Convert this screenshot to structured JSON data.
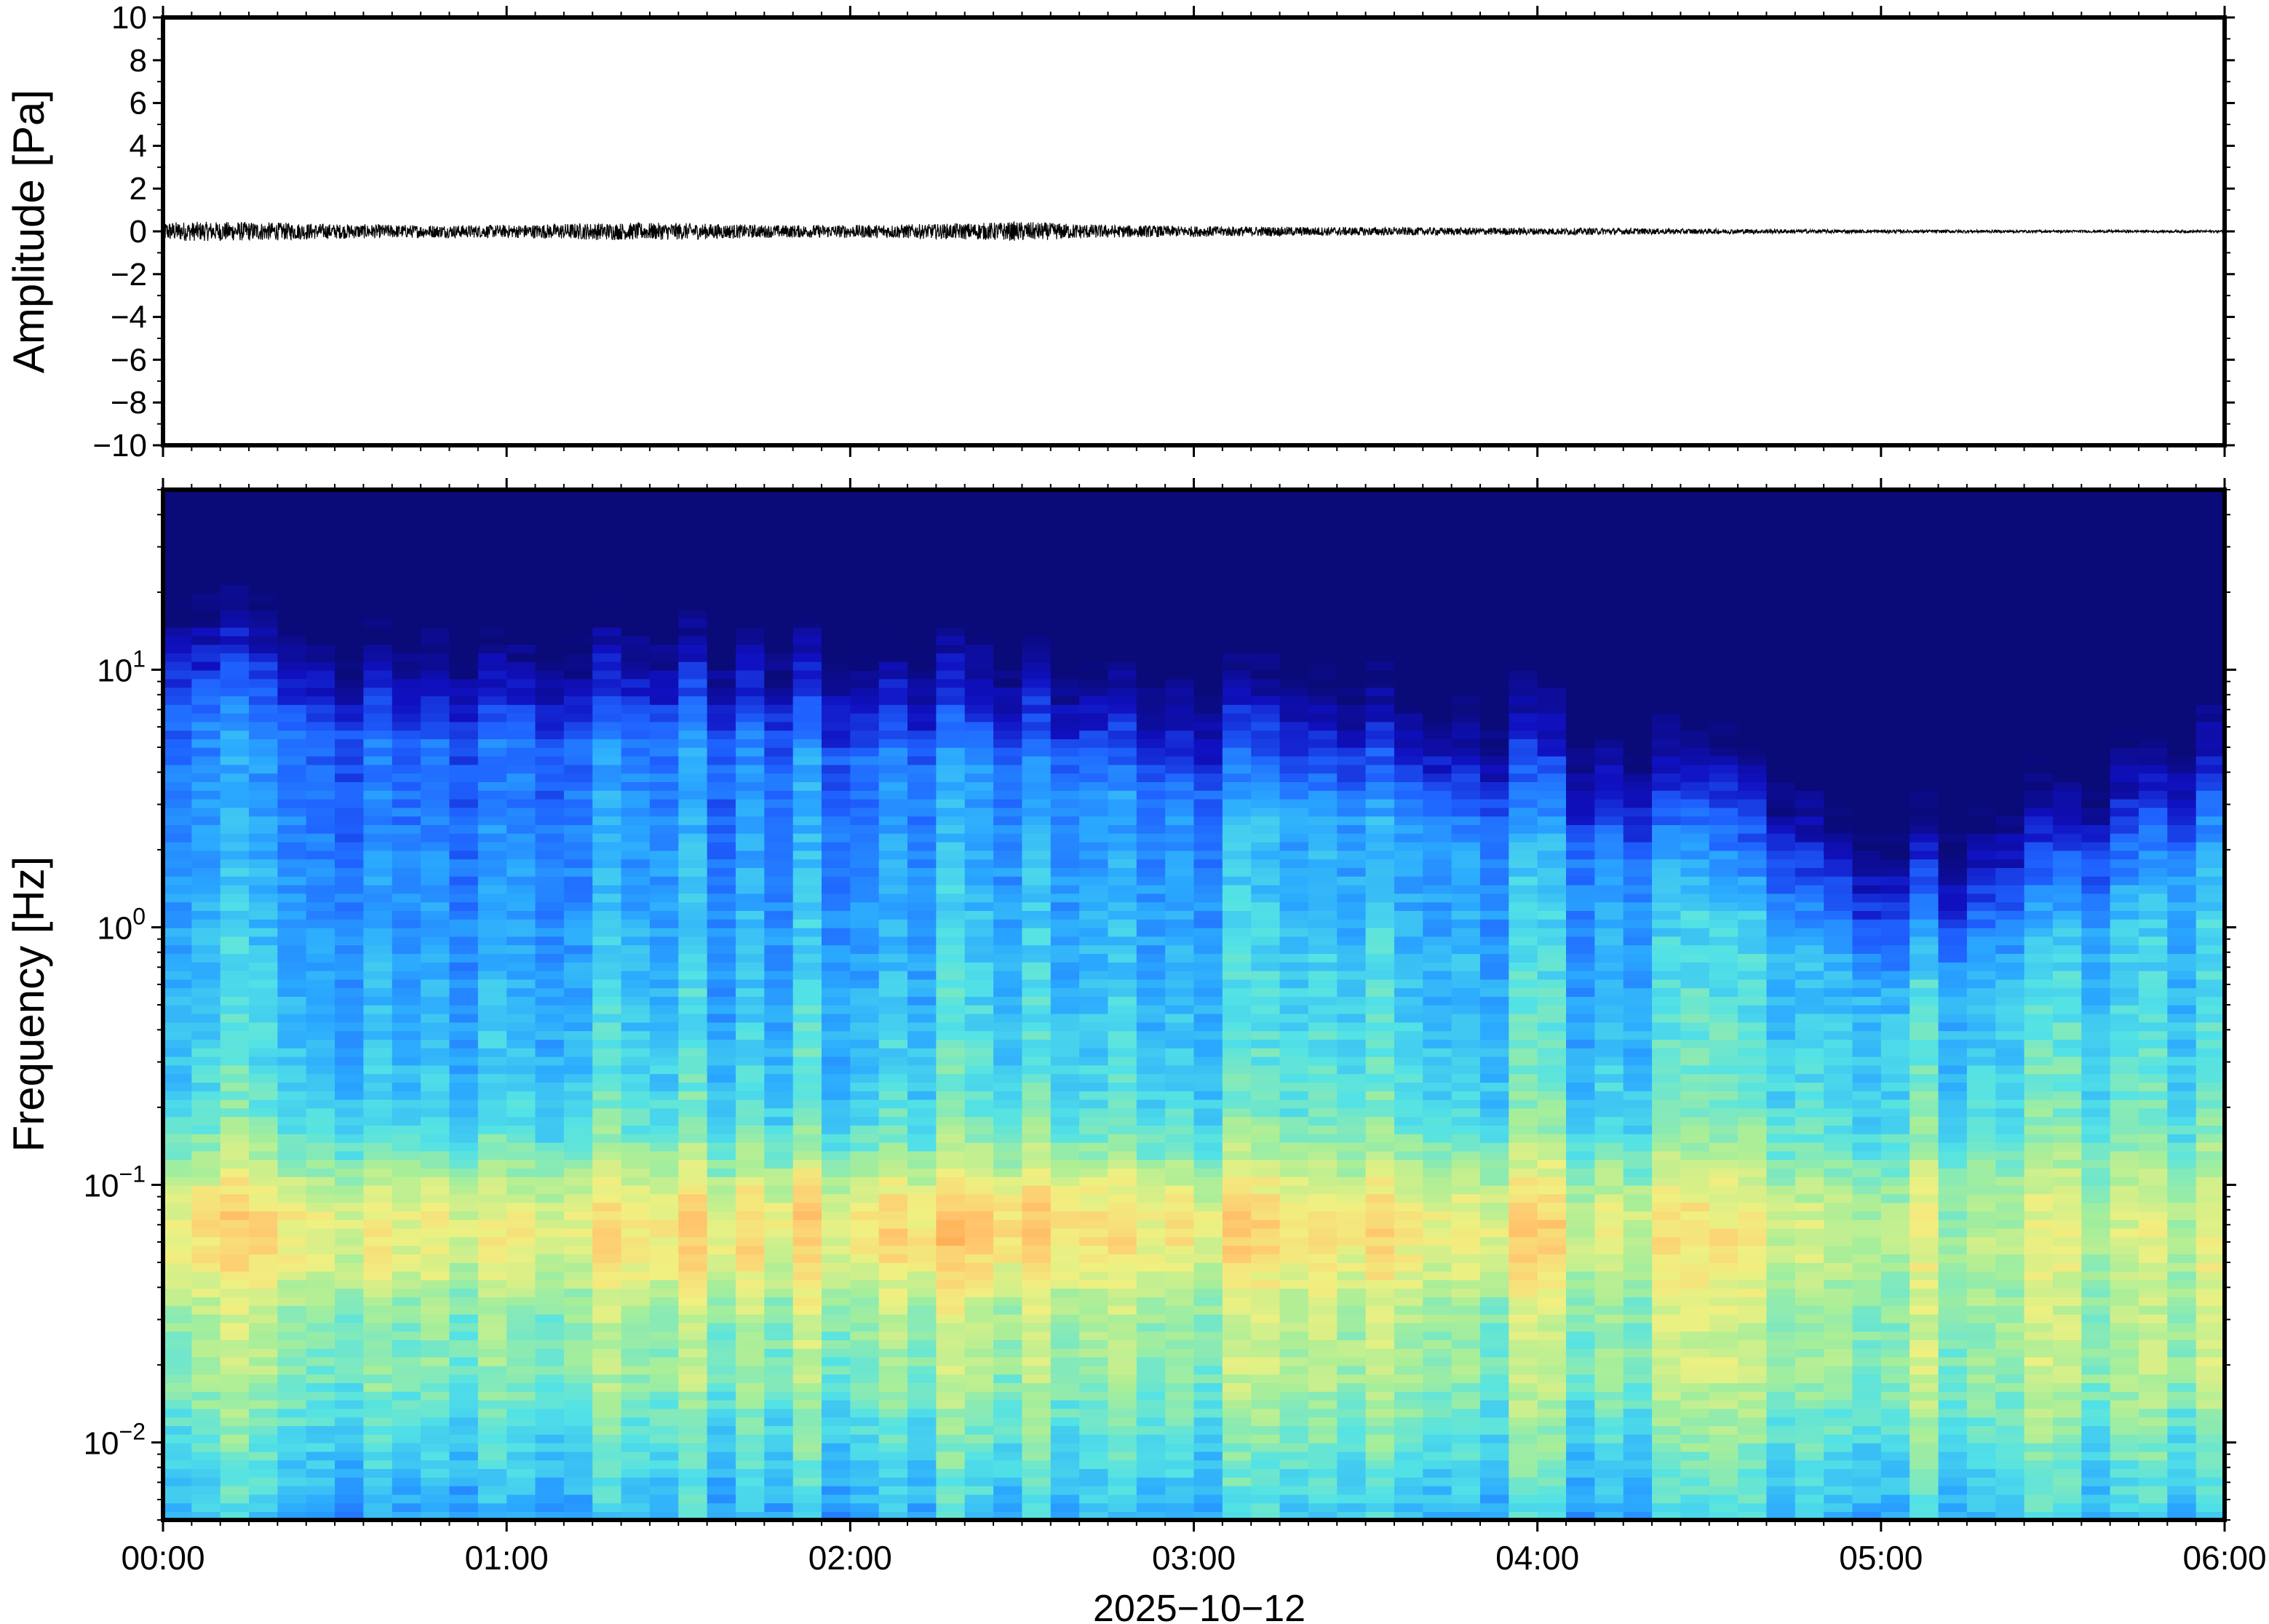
{
  "chart_data": [
    {
      "type": "line",
      "panel": "waveform",
      "ylabel": "Amplitude [Pa]",
      "ylim": [
        -10,
        10
      ],
      "yticks": [
        10,
        8,
        6,
        4,
        2,
        0,
        -2,
        -4,
        -6,
        -8,
        -10
      ],
      "ytick_labels": [
        "10",
        "8",
        "6",
        "4",
        "2",
        "0",
        "−2",
        "−4",
        "−6",
        "−8",
        "−10"
      ],
      "xlim": [
        "00:00",
        "06:00"
      ],
      "series_color": "#000000",
      "envelope": {
        "x_hours": [
          0.0,
          0.25,
          0.5,
          0.75,
          1.0,
          1.25,
          1.5,
          1.75,
          2.0,
          2.25,
          2.5,
          2.75,
          3.0,
          3.25,
          3.5,
          3.75,
          4.0,
          4.25,
          4.5,
          4.75,
          5.0,
          5.25,
          5.5,
          5.75,
          6.0
        ],
        "half_amplitude_pa": [
          0.45,
          0.45,
          0.35,
          0.3,
          0.3,
          0.4,
          0.4,
          0.3,
          0.3,
          0.35,
          0.45,
          0.3,
          0.25,
          0.22,
          0.2,
          0.18,
          0.17,
          0.15,
          0.12,
          0.1,
          0.08,
          0.07,
          0.06,
          0.06,
          0.06
        ]
      }
    },
    {
      "type": "heatmap",
      "panel": "spectrogram",
      "ylabel": "Frequency [Hz]",
      "yscale": "log",
      "ylim": [
        0.005,
        50
      ],
      "yticks": [
        {
          "value": 10,
          "base": "10",
          "exp": "1"
        },
        {
          "value": 1,
          "base": "10",
          "exp": "0"
        },
        {
          "value": 0.1,
          "base": "10",
          "exp": "−1"
        },
        {
          "value": 0.01,
          "base": "10",
          "exp": "−2"
        }
      ],
      "xlabel": "2025−10−12",
      "xticks": [
        "00:00",
        "01:00",
        "02:00",
        "03:00",
        "04:00",
        "05:00",
        "06:00"
      ],
      "xlim_hours": [
        0,
        6
      ],
      "colormap": [
        "#0a0a78",
        "#1010c0",
        "#1f62ff",
        "#2aa8ff",
        "#52e2e6",
        "#a6ee9a",
        "#f0f080",
        "#ffc870",
        "#ff9a40"
      ],
      "intensity_model": {
        "t_hours": [
          0.0,
          0.5,
          1.0,
          1.5,
          2.0,
          2.5,
          3.0,
          3.5,
          4.0,
          4.5,
          5.0,
          5.5,
          6.0
        ],
        "upper_energy_cutoff_hz": [
          28,
          22,
          20,
          20,
          18,
          15,
          12,
          10,
          8,
          5,
          2.0,
          3.0,
          7.0
        ],
        "microbarom_peak_hz": 0.07,
        "microbarom_strength": [
          0.8,
          0.85,
          0.75,
          0.85,
          0.9,
          0.95,
          0.8,
          0.7,
          0.75,
          0.55,
          0.4,
          0.35,
          0.45
        ],
        "low_freq_floor_hz": 0.01
      }
    }
  ]
}
